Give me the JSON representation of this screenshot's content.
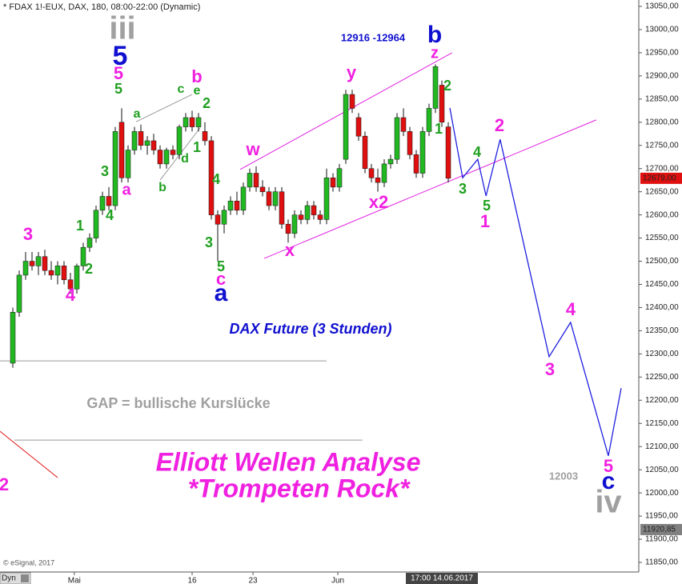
{
  "chart_data": {
    "type": "candlestick",
    "header": "* FDAX 1!-EUX, DAX, 180, 08:00-22:00 (Dynamic)",
    "copyright": "© eSignal, 2017",
    "interval_button": "Dyn",
    "crosshair_time_label": "17:00 14.06.2017",
    "xlim": [
      0,
      100
    ],
    "ylim": [
      11850,
      13050
    ],
    "xticks": [
      {
        "value": 11.6,
        "label": "Mai"
      },
      {
        "value": 30,
        "label": "16"
      },
      {
        "value": 39.5,
        "label": "23"
      },
      {
        "value": 52.75,
        "label": "Jun"
      }
    ],
    "yticks": [
      {
        "value": 13050,
        "label": "13050,00"
      },
      {
        "value": 13000,
        "label": "13000,00"
      },
      {
        "value": 12950,
        "label": "12950,00"
      },
      {
        "value": 12900,
        "label": "12900,00"
      },
      {
        "value": 12850,
        "label": "12850,00"
      },
      {
        "value": 12800,
        "label": "12800,00"
      },
      {
        "value": 12750,
        "label": "12750,00"
      },
      {
        "value": 12700,
        "label": "12700,00"
      },
      {
        "value": 12650,
        "label": "12650,00"
      },
      {
        "value": 12600,
        "label": "12600,00"
      },
      {
        "value": 12550,
        "label": "12550,00"
      },
      {
        "value": 12500,
        "label": "12500,00"
      },
      {
        "value": 12450,
        "label": "12450,00"
      },
      {
        "value": 12400,
        "label": "12400,00"
      },
      {
        "value": 12350,
        "label": "12350,00"
      },
      {
        "value": 12300,
        "label": "12300,00"
      },
      {
        "value": 12250,
        "label": "12250,00"
      },
      {
        "value": 12200,
        "label": "12200,00"
      },
      {
        "value": 12150,
        "label": "12150,00"
      },
      {
        "value": 12100,
        "label": "12100,00"
      },
      {
        "value": 12050,
        "label": "12050,00"
      },
      {
        "value": 12000,
        "label": "12000,00"
      },
      {
        "value": 11950,
        "label": "11950,00"
      },
      {
        "value": 11900,
        "label": "11900,00"
      },
      {
        "value": 11850,
        "label": "11850,00"
      }
    ],
    "up_color": "#22b822",
    "down_color": "#e01010",
    "x": [
      2,
      3,
      4,
      5,
      6,
      7,
      8,
      9,
      10,
      11,
      12,
      13,
      14,
      15,
      16,
      17,
      18,
      19,
      20,
      21,
      22,
      23,
      24,
      25,
      26,
      27,
      28,
      29,
      30,
      31,
      32,
      33,
      34,
      35,
      36,
      37,
      38,
      39,
      40,
      41,
      42,
      43,
      44,
      45,
      46,
      47,
      48,
      49,
      50,
      51,
      52,
      53,
      54,
      55,
      56,
      57,
      58,
      59,
      60,
      61,
      62,
      63,
      64,
      65,
      66,
      67,
      68,
      69,
      70
    ],
    "open": [
      12280,
      12390,
      12470,
      12500,
      12490,
      12510,
      12480,
      12470,
      12490,
      12460,
      12440,
      12490,
      12530,
      12550,
      12610,
      12640,
      12620,
      12800,
      12680,
      12740,
      12780,
      12750,
      12760,
      12740,
      12710,
      12740,
      12730,
      12790,
      12810,
      12790,
      12780,
      12760,
      12600,
      12580,
      12610,
      12630,
      12610,
      12660,
      12690,
      12660,
      12650,
      12620,
      12650,
      12580,
      12560,
      12600,
      12590,
      12620,
      12600,
      12590,
      12680,
      12660,
      12720,
      12860,
      12810,
      12770,
      12700,
      12680,
      12670,
      12710,
      12720,
      12810,
      12780,
      12730,
      12690,
      12780,
      12830,
      12880,
      12790
    ],
    "high": [
      12400,
      12480,
      12520,
      12520,
      12520,
      12525,
      12500,
      12500,
      12500,
      12475,
      12495,
      12540,
      12560,
      12620,
      12650,
      12660,
      12790,
      12830,
      12750,
      12790,
      12795,
      12770,
      12775,
      12750,
      12745,
      12750,
      12795,
      12820,
      12825,
      12820,
      12800,
      12770,
      12610,
      12620,
      12640,
      12650,
      12670,
      12700,
      12705,
      12675,
      12660,
      12660,
      12660,
      12590,
      12610,
      12610,
      12630,
      12630,
      12610,
      12700,
      12690,
      12710,
      12870,
      12870,
      12820,
      12780,
      12710,
      12700,
      12720,
      12730,
      12820,
      12830,
      12790,
      12740,
      12790,
      12840,
      12925,
      12890,
      12800
    ],
    "low": [
      12270,
      12380,
      12460,
      12480,
      12470,
      12470,
      12460,
      12450,
      12450,
      12430,
      12430,
      12480,
      12520,
      12540,
      12600,
      12610,
      12610,
      12670,
      12670,
      12730,
      12740,
      12730,
      12730,
      12700,
      12700,
      12720,
      12720,
      12780,
      12780,
      12780,
      12750,
      12590,
      12500,
      12560,
      12600,
      12600,
      12600,
      12650,
      12650,
      12640,
      12610,
      12610,
      12570,
      12540,
      12550,
      12580,
      12580,
      12590,
      12580,
      12580,
      12650,
      12650,
      12710,
      12820,
      12760,
      12690,
      12670,
      12650,
      12660,
      12700,
      12710,
      12770,
      12720,
      12680,
      12680,
      12770,
      12820,
      12790,
      12670
    ],
    "close": [
      12390,
      12470,
      12500,
      12490,
      12510,
      12480,
      12470,
      12490,
      12460,
      12440,
      12490,
      12530,
      12550,
      12610,
      12640,
      12620,
      12780,
      12680,
      12740,
      12780,
      12750,
      12760,
      12740,
      12710,
      12740,
      12730,
      12790,
      12810,
      12790,
      12810,
      12760,
      12600,
      12580,
      12610,
      12630,
      12610,
      12660,
      12690,
      12660,
      12650,
      12620,
      12650,
      12580,
      12560,
      12600,
      12590,
      12620,
      12600,
      12590,
      12680,
      12660,
      12700,
      12860,
      12830,
      12770,
      12700,
      12680,
      12670,
      12710,
      12720,
      12810,
      12780,
      12730,
      12690,
      12780,
      12830,
      12920,
      12800,
      12679
    ],
    "lines": [
      {
        "color": "#999999",
        "x": [
          0,
          51
        ],
        "y": [
          12285,
          12285
        ]
      },
      {
        "color": "#999999",
        "x": [
          2.25,
          56.6
        ],
        "y": [
          12114,
          12114
        ]
      },
      {
        "color": "#e01010",
        "x": [
          0,
          9
        ],
        "y": [
          12133,
          12033
        ]
      },
      {
        "color": "#999999",
        "x": [
          21.25,
          30
        ],
        "y": [
          12801,
          12860
        ]
      },
      {
        "color": "#999999",
        "x": [
          25,
          31.25
        ],
        "y": [
          12675,
          12788
        ]
      },
      {
        "color": "#e020e0",
        "x": [
          37.5,
          70.6
        ],
        "y": [
          12698,
          12950
        ]
      },
      {
        "color": "#e020e0",
        "x": [
          41.25,
          93.1
        ],
        "y": [
          12506,
          12805
        ]
      },
      {
        "color": "#2020e0",
        "x": [
          70.25,
          72.25,
          74.6,
          75.9,
          78.1,
          85.75,
          89.1,
          95,
          97
        ],
        "y": [
          12831,
          12680,
          12720,
          12641,
          12763,
          12294,
          12368,
          12080,
          12226
        ]
      }
    ],
    "price_markers": [
      {
        "value": 12679,
        "label": "12679,00",
        "color": "#e01010"
      },
      {
        "value": 11920.85,
        "label": "11920,85",
        "color": "#808080"
      }
    ],
    "annotations": [
      {
        "text": "iii",
        "color": "#a0a0a0"
      },
      {
        "text": "5",
        "color": "#1010d0"
      },
      {
        "text": "5",
        "color": "#f020e0"
      },
      {
        "text": "5",
        "color": "#20a020"
      },
      {
        "text": "c",
        "color": "#20a020"
      },
      {
        "text": "b",
        "color": "#f020e0"
      },
      {
        "text": "e",
        "color": "#20a020"
      },
      {
        "text": "a",
        "color": "#20a020"
      },
      {
        "text": "2",
        "color": "#20a020"
      },
      {
        "text": "1",
        "color": "#20a020"
      },
      {
        "text": "d",
        "color": "#20a020"
      },
      {
        "text": "b",
        "color": "#20a020"
      },
      {
        "text": "3",
        "color": "#20a020"
      },
      {
        "text": "a",
        "color": "#f020e0"
      },
      {
        "text": "4",
        "color": "#20a020"
      },
      {
        "text": "4",
        "color": "#20a020"
      },
      {
        "text": "1",
        "color": "#20a020"
      },
      {
        "text": "3",
        "color": "#f020e0"
      },
      {
        "text": "2",
        "color": "#20a020"
      },
      {
        "text": "4",
        "color": "#f020e0"
      },
      {
        "text": "3",
        "color": "#20a020"
      },
      {
        "text": "5",
        "color": "#20a020"
      },
      {
        "text": "c",
        "color": "#f020e0"
      },
      {
        "text": "a",
        "color": "#1010d0"
      },
      {
        "text": "w",
        "color": "#f020e0"
      },
      {
        "text": "x",
        "color": "#f020e0"
      },
      {
        "text": "y",
        "color": "#f020e0"
      },
      {
        "text": "x2",
        "color": "#f020e0"
      },
      {
        "text": "z",
        "color": "#f020e0"
      },
      {
        "text": "b",
        "color": "#1010d0"
      },
      {
        "text": "12916 -12964",
        "color": "#1010d0"
      },
      {
        "text": "2",
        "color": "#20a020"
      },
      {
        "text": "1",
        "color": "#20a020"
      },
      {
        "text": "4",
        "color": "#20a020"
      },
      {
        "text": "3",
        "color": "#20a020"
      },
      {
        "text": "5",
        "color": "#20a020"
      },
      {
        "text": "1",
        "color": "#f020e0"
      },
      {
        "text": "2",
        "color": "#f020e0"
      },
      {
        "text": "4",
        "color": "#f020e0"
      },
      {
        "text": "3",
        "color": "#f020e0"
      },
      {
        "text": "5",
        "color": "#f020e0"
      },
      {
        "text": "c",
        "color": "#1010d0"
      },
      {
        "text": "iv",
        "color": "#a0a0a0"
      },
      {
        "text": "12003",
        "color": "#a0a0a0"
      },
      {
        "text": "DAX Future (3 Stunden)",
        "color": "#1010d0"
      },
      {
        "text": "GAP = bullische Kurslücke",
        "color": "#a0a0a0"
      },
      {
        "text": "Elliott Wellen Analyse",
        "color": "#f020e0"
      },
      {
        "text": "*Trompeten Rock*",
        "color": "#f020e0"
      },
      {
        "text": "2",
        "color": "#f020e0"
      }
    ]
  }
}
